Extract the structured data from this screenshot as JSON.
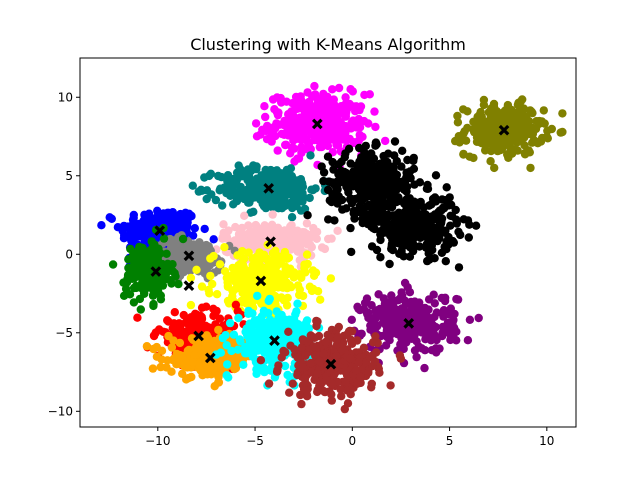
{
  "chart_data": {
    "type": "scatter",
    "title": "Clustering with K-Means Algorithm",
    "xlabel": "",
    "ylabel": "",
    "xlim": [
      -14,
      11.5
    ],
    "ylim": [
      -11,
      12.5
    ],
    "xticks": [
      -10,
      -5,
      0,
      5,
      10
    ],
    "yticks": [
      -10,
      -5,
      0,
      5,
      10
    ],
    "xtick_labels": [
      "−10",
      "−5",
      "0",
      "5",
      "10"
    ],
    "ytick_labels": [
      "−10",
      "−5",
      "0",
      "5",
      "10"
    ],
    "grid": false,
    "legend": "none",
    "clusters": [
      {
        "color": "#0000ff",
        "center": [
          -9.9,
          1.5
        ],
        "spread": [
          1.0,
          0.75
        ],
        "count": 220
      },
      {
        "color": "#ff00ff",
        "center": [
          -1.8,
          8.3
        ],
        "spread": [
          1.25,
          0.95
        ],
        "count": 320
      },
      {
        "color": "#808000",
        "center": [
          7.8,
          7.9
        ],
        "spread": [
          1.0,
          0.8
        ],
        "count": 280
      },
      {
        "color": "#008080",
        "center": [
          -4.3,
          4.2
        ],
        "spread": [
          1.3,
          0.7
        ],
        "count": 300
      },
      {
        "color": "#000000",
        "center": [
          1.0,
          4.6
        ],
        "spread": [
          1.1,
          1.0
        ],
        "count": 320
      },
      {
        "color": "#000000",
        "center": [
          3.2,
          1.9
        ],
        "spread": [
          1.1,
          0.95
        ],
        "count": 300
      },
      {
        "color": "#ffc0cb",
        "center": [
          -4.2,
          0.8
        ],
        "spread": [
          1.2,
          0.6
        ],
        "count": 280
      },
      {
        "color": "#808080",
        "center": [
          -8.4,
          -0.1
        ],
        "spread": [
          0.85,
          0.55
        ],
        "count": 200
      },
      {
        "color": "#008000",
        "center": [
          -10.5,
          -1.1
        ],
        "spread": [
          0.6,
          0.95
        ],
        "count": 180
      },
      {
        "color": "#ffff00",
        "center": [
          -4.7,
          -1.7
        ],
        "spread": [
          1.2,
          0.9
        ],
        "count": 300
      },
      {
        "color": "#ff0000",
        "center": [
          -7.9,
          -5.2
        ],
        "spread": [
          1.05,
          0.7
        ],
        "count": 240
      },
      {
        "color": "#ffa500",
        "center": [
          -7.3,
          -6.6
        ],
        "spread": [
          1.1,
          0.6
        ],
        "count": 220
      },
      {
        "color": "#00ffff",
        "center": [
          -4.0,
          -5.5
        ],
        "spread": [
          1.0,
          0.95
        ],
        "count": 280
      },
      {
        "color": "#800080",
        "center": [
          2.9,
          -4.4
        ],
        "spread": [
          1.2,
          0.95
        ],
        "count": 300
      },
      {
        "color": "#a52a2a",
        "center": [
          -1.1,
          -7.0
        ],
        "spread": [
          1.2,
          1.0
        ],
        "count": 300
      }
    ],
    "centroids": {
      "color": "#000000",
      "marker": "X",
      "points": [
        [
          -9.9,
          1.5
        ],
        [
          -1.8,
          8.3
        ],
        [
          7.8,
          7.9
        ],
        [
          -4.3,
          4.2
        ],
        [
          1.4,
          4.6
        ],
        [
          3.2,
          1.9
        ],
        [
          -4.2,
          0.8
        ],
        [
          -8.4,
          -0.1
        ],
        [
          -10.1,
          -1.1
        ],
        [
          -4.7,
          -1.7
        ],
        [
          -7.9,
          -5.2
        ],
        [
          -7.3,
          -6.6
        ],
        [
          -4.0,
          -5.5
        ],
        [
          2.9,
          -4.4
        ],
        [
          -1.1,
          -7.0
        ],
        [
          -8.4,
          -2.0
        ]
      ]
    }
  }
}
